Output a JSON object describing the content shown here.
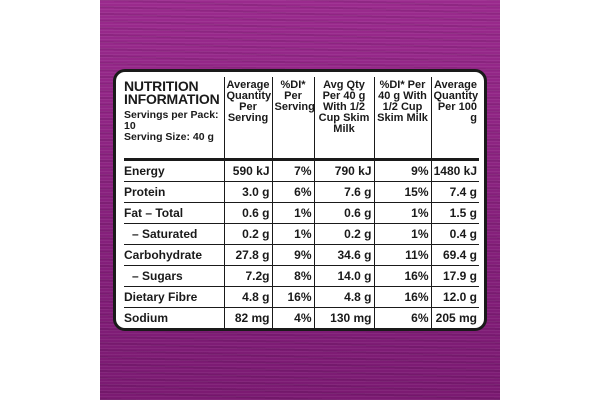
{
  "panel": {
    "title": "NUTRITION INFORMATION",
    "servings_per_pack": "Servings per Pack: 10",
    "serving_size": "Serving Size: 40 g"
  },
  "columns": [
    "Average Quantity Per Serving",
    "%DI* Per Serving",
    "Avg Qty Per 40 g With 1/2 Cup Skim Milk",
    "%DI* Per 40 g With 1/2 Cup Skim Milk",
    "Average Quantity Per 100 g"
  ],
  "rows": [
    {
      "name": "Energy",
      "values": [
        "590 kJ",
        "7%",
        "790 kJ",
        "9%",
        "1480 kJ"
      ]
    },
    {
      "name": "Protein",
      "values": [
        "3.0 g",
        "6%",
        "7.6 g",
        "15%",
        "7.4 g"
      ]
    },
    {
      "name": "Fat – Total",
      "values": [
        "0.6 g",
        "1%",
        "0.6 g",
        "1%",
        "1.5 g"
      ]
    },
    {
      "name": "– Saturated",
      "values": [
        "0.2 g",
        "1%",
        "0.2 g",
        "1%",
        "0.4 g"
      ]
    },
    {
      "name": "Carbohydrate",
      "values": [
        "27.8 g",
        "9%",
        "34.6 g",
        "11%",
        "69.4 g"
      ]
    },
    {
      "name": "– Sugars",
      "values": [
        "7.2g",
        "8%",
        "14.0 g",
        "16%",
        "17.9 g"
      ]
    },
    {
      "name": "Dietary Fibre",
      "values": [
        "4.8 g",
        "16%",
        "4.8 g",
        "16%",
        "12.0 g"
      ]
    },
    {
      "name": "Sodium",
      "values": [
        "82 mg",
        "4%",
        "130 mg",
        "6%",
        "205 mg"
      ]
    }
  ],
  "colors": {
    "background": "#ffffff",
    "pack_purple": "#8a237f",
    "panel": "#ffffff",
    "ink": "#1a1a1a"
  }
}
